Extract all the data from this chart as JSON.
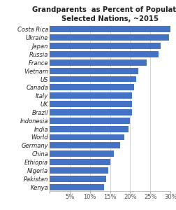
{
  "title_line1": "Grandparents  as Percent of Population",
  "title_line2": "Selected Nations, ~2015",
  "countries": [
    "Costa Rica",
    "Ukraine",
    "Japan",
    "Russia",
    "France",
    "Vietnam",
    "US",
    "Canada",
    "Italy",
    "UK",
    "Brazil",
    "Indonesia",
    "India",
    "World",
    "Germany",
    "China",
    "Ethiopia",
    "Nigeria",
    "Pakistan",
    "Kenya"
  ],
  "values": [
    30.0,
    29.5,
    27.5,
    27.0,
    24.0,
    22.0,
    21.5,
    21.0,
    20.5,
    20.5,
    20.5,
    20.0,
    19.5,
    18.5,
    17.5,
    16.0,
    15.0,
    14.5,
    14.0,
    13.5
  ],
  "bar_color": "#4472C4",
  "xlim": [
    0,
    30
  ],
  "xticks": [
    0,
    5,
    10,
    15,
    20,
    25,
    30
  ],
  "tick_labels": [
    "",
    "5%",
    "10%",
    "15%",
    "20%",
    "25%",
    "30%"
  ],
  "background_color": "#ffffff",
  "title_fontsize": 7.2,
  "label_fontsize": 6.0,
  "tick_fontsize": 6.0
}
